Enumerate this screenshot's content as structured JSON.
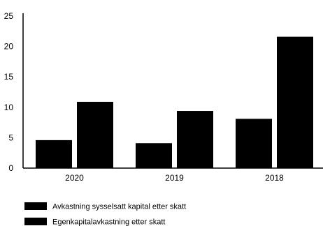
{
  "chart_data": {
    "type": "bar",
    "categories": [
      "2020",
      "2019",
      "2018"
    ],
    "series": [
      {
        "name": "Avkastning sysselsatt kapital etter skatt",
        "values": [
          4.6,
          4.1,
          8.1
        ],
        "color": "#000000"
      },
      {
        "name": "Egenkapitalavkastning etter skatt",
        "values": [
          10.9,
          9.4,
          21.6
        ],
        "color": "#000000"
      }
    ],
    "ylim": [
      0,
      25
    ],
    "yticks": [
      "0",
      "5",
      "10",
      "15",
      "20",
      "25"
    ],
    "grid": false,
    "legend_position": "bottom-left"
  }
}
